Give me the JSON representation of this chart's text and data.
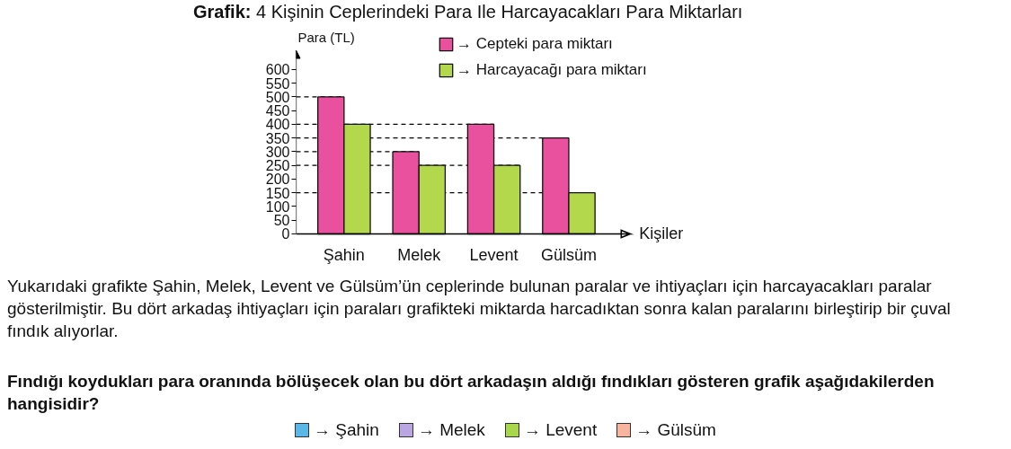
{
  "chart_data": [
    {
      "type": "bar",
      "title": "Grafik: 4 Kişinin Ceplerindeki Para Ile Harcayacakları Para Miktarları",
      "xlabel": "Kişiler",
      "ylabel": "Para (TL)",
      "categories": [
        "Şahin",
        "Melek",
        "Levent",
        "Gülsüm"
      ],
      "series": [
        {
          "name": "→ Cepteki para miktarı",
          "color": "#e9509e",
          "values": [
            500,
            300,
            400,
            350
          ]
        },
        {
          "name": "→ Harcayacağı para miktarı",
          "color": "#b4d84c",
          "values": [
            400,
            250,
            250,
            150
          ]
        }
      ],
      "ylim": [
        0,
        670
      ],
      "yticks": [
        0,
        50,
        100,
        150,
        200,
        250,
        300,
        350,
        400,
        450,
        500,
        550,
        600
      ],
      "grid": false,
      "legend": "top",
      "ref_lines": [
        {
          "axis": "y",
          "value": 500,
          "color": "#000000",
          "line_style": "dashed"
        },
        {
          "axis": "y",
          "value": 400,
          "color": "#000000",
          "line_style": "dashed"
        },
        {
          "axis": "y",
          "value": 350,
          "color": "#000000",
          "line_style": "dashed"
        },
        {
          "axis": "y",
          "value": 300,
          "color": "#000000",
          "line_style": "dashed"
        },
        {
          "axis": "y",
          "value": 250,
          "color": "#000000",
          "line_style": "dashed"
        },
        {
          "axis": "y",
          "value": 150,
          "color": "#000000",
          "line_style": "dashed"
        }
      ],
      "annotations": [
        "Yukarıdaki grafikte Şahin, Melek, Levent ve Gülsüm’ün ceplerinde bulunan paralar ve ihtiyaçları için harcayacakları paralar gösterilmiştir. Bu dört arkadaş ihtiyaçları için paraları grafikteki miktarda harcadıktan sonra kalan paralarını birleştirip bir çuval fındık alıyorlar.",
        "Fındığı koydukları para oranında bölüşecek olan bu dört arkadaşın aldığı fındıkları gösteren grafik aşağıdakilerden hangisidir?"
      ]
    },
    {
      "type": "other",
      "categories": [
        "→ Şahin",
        "→ Melek",
        "→ Levent",
        "→ Gülsüm"
      ],
      "colors": [
        "#5ab8e8",
        "#b9a6e3",
        "#a8d84a",
        "#f8b49c"
      ]
    }
  ]
}
